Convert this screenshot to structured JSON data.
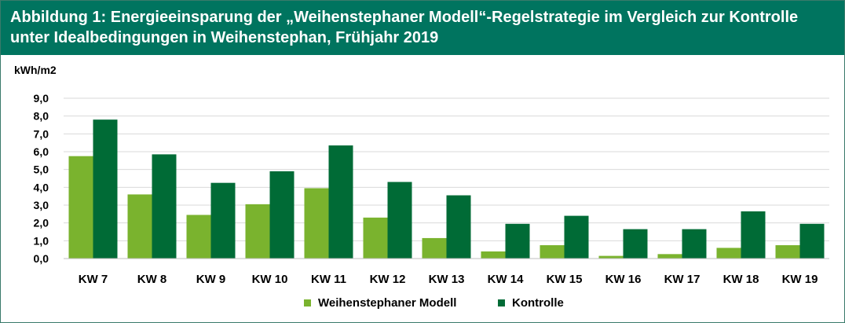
{
  "figure": {
    "title": "Abbildung 1: Energieeinsparung der „Weihenstephaner Modell“-Regelstrategie im Vergleich zur Kontrolle unter Idealbedingungen in Weihenstephan, Frühjahr 2019",
    "title_bg_color": "#00745f"
  },
  "chart_data": {
    "type": "bar",
    "title": "Abbildung 1: Energieeinsparung der „Weihenstephaner Modell“-Regelstrategie im Vergleich zur Kontrolle unter Idealbedingungen in Weihenstephan, Frühjahr 2019",
    "ylabel": "kWh/m2",
    "xlabel": "",
    "ylim": [
      0,
      9
    ],
    "yticks": [
      "0,0",
      "1,0",
      "2,0",
      "3,0",
      "4,0",
      "5,0",
      "6,0",
      "7,0",
      "8,0",
      "9,0"
    ],
    "grid": true,
    "legend_position": "bottom",
    "categories": [
      "KW 7",
      "KW 8",
      "KW 9",
      "KW 10",
      "KW 11",
      "KW 12",
      "KW 13",
      "KW 14",
      "KW 15",
      "KW 16",
      "KW 17",
      "KW 18",
      "KW 19"
    ],
    "series": [
      {
        "name": "Weihenstephaner Modell",
        "color": "#7ab32e",
        "values": [
          5.75,
          3.6,
          2.45,
          3.05,
          3.95,
          2.3,
          1.15,
          0.4,
          0.75,
          0.15,
          0.25,
          0.6,
          0.75
        ]
      },
      {
        "name": "Kontrolle",
        "color": "#006b36",
        "values": [
          7.8,
          5.85,
          4.25,
          4.9,
          6.35,
          4.3,
          3.55,
          1.95,
          2.4,
          1.65,
          1.65,
          2.65,
          1.95
        ]
      }
    ]
  }
}
